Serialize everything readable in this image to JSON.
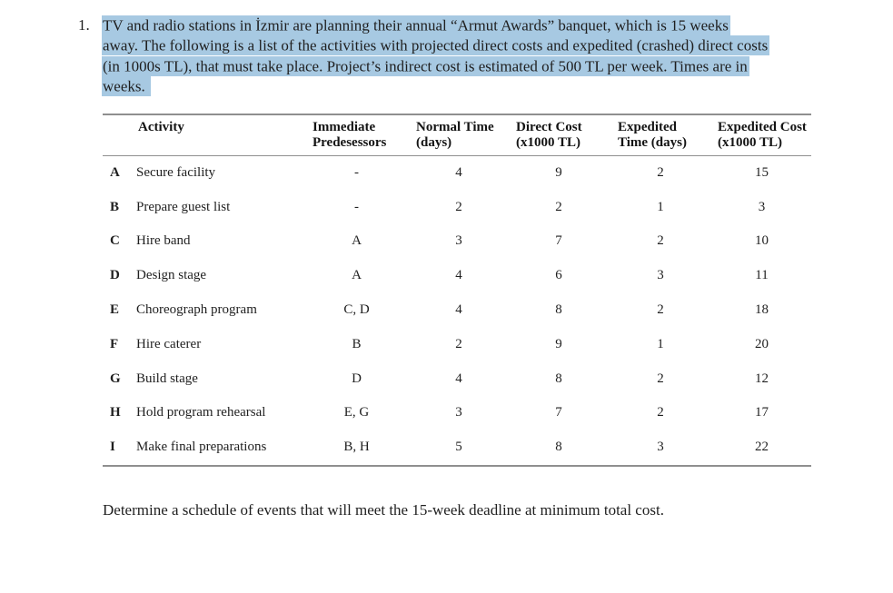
{
  "colors": {
    "selection_highlight": "#a7c9e2",
    "table_rule": "#8f8f8f",
    "text": "#1f1f1f",
    "background": "#ffffff"
  },
  "problem": {
    "number": "1.",
    "lines": [
      "TV and radio stations in İzmir are planning their annual “Armut Awards” banquet, which is 15 weeks",
      "away. The following is a list of the activities with projected direct costs and expedited (crashed) direct costs",
      "(in 1000s TL), that must take place. Project’s indirect cost is estimated of 500 TL per week. Times are in",
      "weeks. "
    ]
  },
  "table": {
    "headers": [
      {
        "line1": "Activity",
        "line2": ""
      },
      {
        "line1": "Immediate",
        "line2": "Predesessors"
      },
      {
        "line1": "Normal Time",
        "line2": "(days)"
      },
      {
        "line1": "Direct Cost",
        "line2": "(x1000 TL)"
      },
      {
        "line1": "Expedited",
        "line2": "Time (days)"
      },
      {
        "line1": "Expedited Cost",
        "line2": "(x1000 TL)"
      }
    ],
    "rows": [
      {
        "id": "A",
        "activity": "Secure facility",
        "predecessors": "-",
        "normal_time": "4",
        "direct_cost": "9",
        "expedited_time": "2",
        "expedited_cost": "15"
      },
      {
        "id": "B",
        "activity": "Prepare guest list",
        "predecessors": "-",
        "normal_time": "2",
        "direct_cost": "2",
        "expedited_time": "1",
        "expedited_cost": "3"
      },
      {
        "id": "C",
        "activity": "Hire band",
        "predecessors": "A",
        "normal_time": "3",
        "direct_cost": "7",
        "expedited_time": "2",
        "expedited_cost": "10"
      },
      {
        "id": "D",
        "activity": "Design stage",
        "predecessors": "A",
        "normal_time": "4",
        "direct_cost": "6",
        "expedited_time": "3",
        "expedited_cost": "11"
      },
      {
        "id": "E",
        "activity": "Choreograph program",
        "predecessors": "C, D",
        "normal_time": "4",
        "direct_cost": "8",
        "expedited_time": "2",
        "expedited_cost": "18"
      },
      {
        "id": "F",
        "activity": "Hire caterer",
        "predecessors": "B",
        "normal_time": "2",
        "direct_cost": "9",
        "expedited_time": "1",
        "expedited_cost": "20"
      },
      {
        "id": "G",
        "activity": "Build stage",
        "predecessors": "D",
        "normal_time": "4",
        "direct_cost": "8",
        "expedited_time": "2",
        "expedited_cost": "12"
      },
      {
        "id": "H",
        "activity": "Hold program rehearsal",
        "predecessors": "E, G",
        "normal_time": "3",
        "direct_cost": "7",
        "expedited_time": "2",
        "expedited_cost": "17"
      },
      {
        "id": "I",
        "activity": "Make final preparations",
        "predecessors": "B, H",
        "normal_time": "5",
        "direct_cost": "8",
        "expedited_time": "3",
        "expedited_cost": "22"
      }
    ]
  },
  "footer": {
    "instruction": "Determine a schedule of events that will meet the 15-week deadline at minimum total cost."
  }
}
